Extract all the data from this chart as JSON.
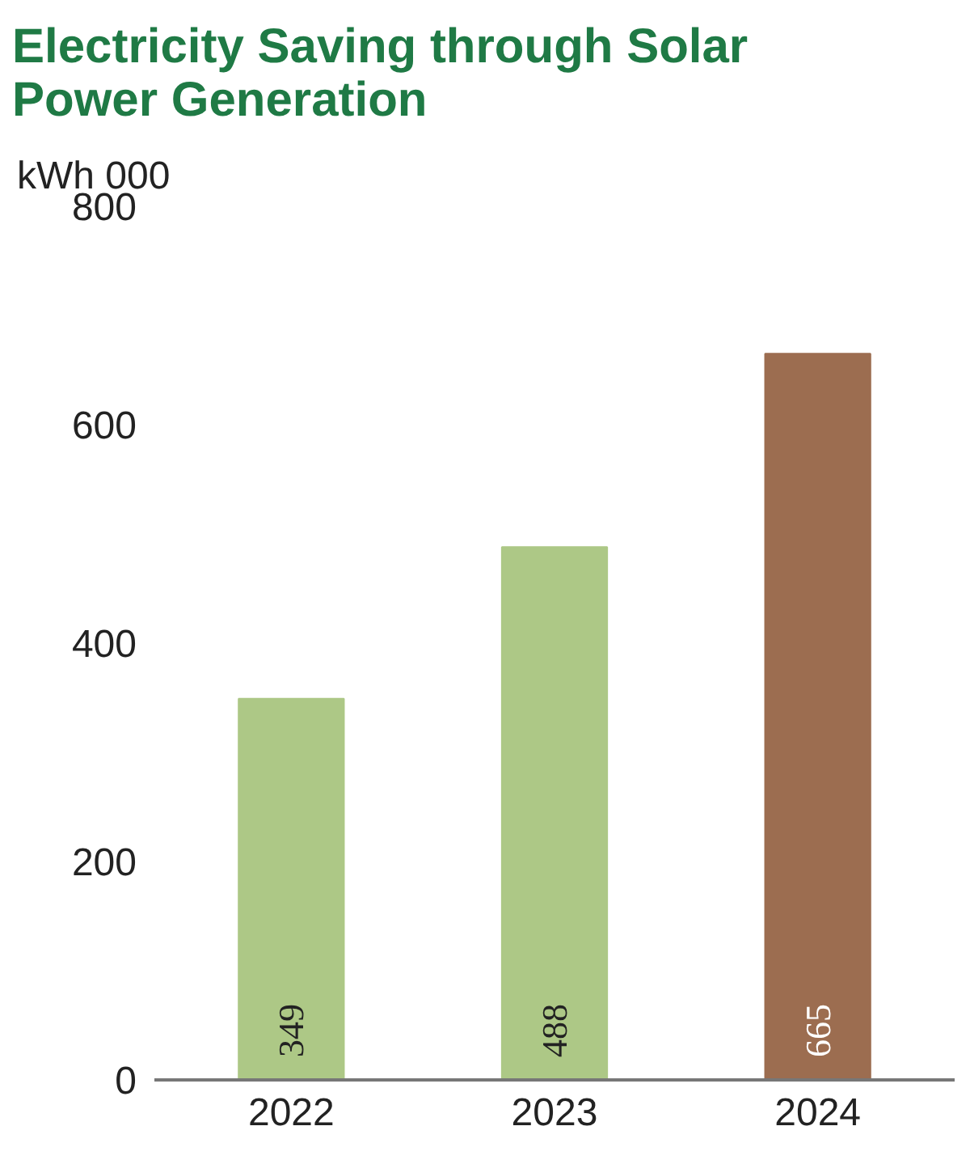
{
  "chart_data": {
    "type": "bar",
    "title": "Electricity Saving through Solar Power Generation",
    "ylabel": "kWh 000",
    "categories": [
      "2022",
      "2023",
      "2024"
    ],
    "values": [
      349,
      488,
      665
    ],
    "colors": [
      "#adc886",
      "#adc886",
      "#9c6d50"
    ],
    "ylim": [
      0,
      800
    ],
    "yticks": [
      0,
      200,
      400,
      600,
      800
    ],
    "grid": false,
    "data_labels": true
  }
}
